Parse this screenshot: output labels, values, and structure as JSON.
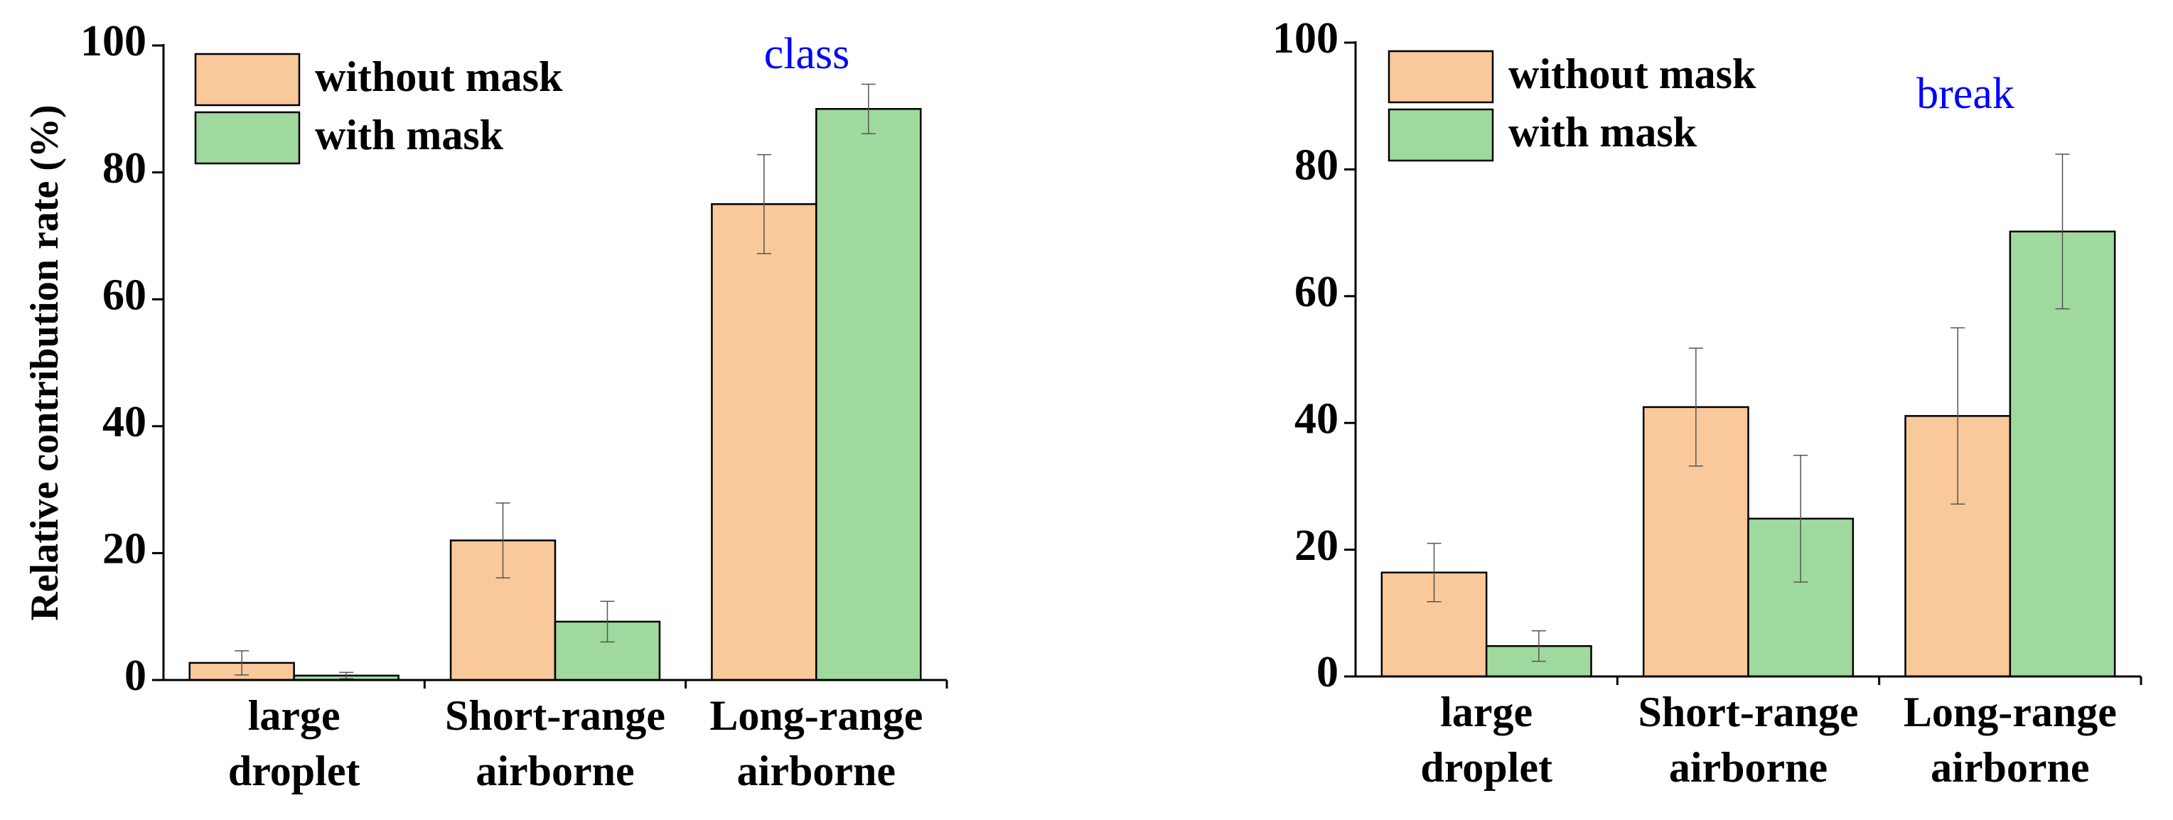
{
  "chart_data": [
    {
      "type": "bar",
      "annotation": "class",
      "ylabel": "Relative contribution rate (%)",
      "categories": [
        [
          "large",
          "droplet"
        ],
        [
          "Short-range",
          "airborne"
        ],
        [
          "Long-range",
          "airborne"
        ]
      ],
      "series": [
        {
          "name": "without mask",
          "color": "#f9c89b",
          "values": [
            2.7,
            22,
            75
          ],
          "errors": [
            1.9,
            5.9,
            7.8
          ]
        },
        {
          "name": "with mask",
          "color": "#a0d99e",
          "values": [
            0.7,
            9.2,
            90
          ],
          "errors": [
            0.5,
            3.2,
            3.9
          ]
        }
      ],
      "ylim": [
        0,
        100
      ],
      "yticks": [
        0,
        20,
        40,
        60,
        80,
        100
      ],
      "legend": "upper left",
      "annotation_color": "#0000ff"
    },
    {
      "type": "bar",
      "annotation": "break",
      "categories": [
        [
          "large",
          "droplet"
        ],
        [
          "Short-range",
          "airborne"
        ],
        [
          "Long-range",
          "airborne"
        ]
      ],
      "series": [
        {
          "name": "without mask",
          "color": "#f9c89b",
          "values": [
            16.4,
            42.5,
            41.1
          ],
          "errors": [
            4.6,
            9.3,
            13.9
          ]
        },
        {
          "name": "with mask",
          "color": "#a0d99e",
          "values": [
            4.8,
            24.9,
            70.2
          ],
          "errors": [
            2.4,
            10,
            12.2
          ]
        }
      ],
      "ylim": [
        0,
        100
      ],
      "yticks": [
        0,
        20,
        40,
        60,
        80,
        100
      ],
      "legend": "upper left",
      "annotation_color": "#0000ff"
    }
  ]
}
